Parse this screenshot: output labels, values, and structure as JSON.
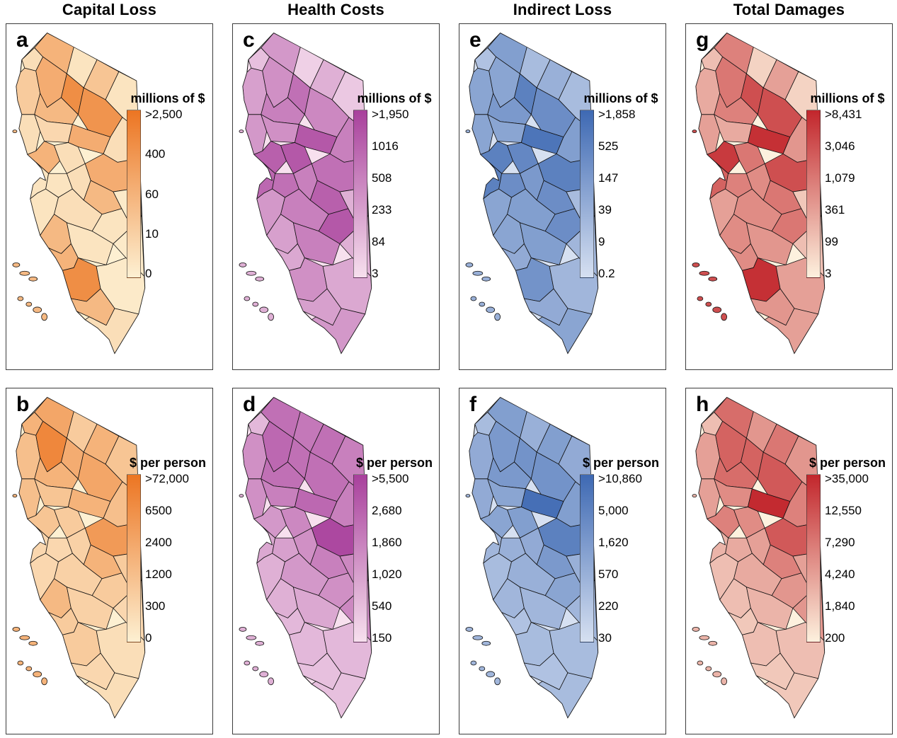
{
  "figure": {
    "columns": [
      {
        "title": "Capital Loss"
      },
      {
        "title": "Health Costs"
      },
      {
        "title": "Indirect Loss"
      },
      {
        "title": "Total Damages"
      }
    ]
  },
  "chart_data": {
    "type": "heatmap",
    "subtype": "choropleth-map-grid",
    "region": "California counties (state shown in rotated orientation, Channel Islands offshore)",
    "rows": [
      "millions of $",
      "$ per person"
    ],
    "note": "region_shades are relative color intensities (0 = lightest, 1 = darkest) estimated from the figure; legend color scales are nonlinear",
    "panels": [
      {
        "id": "a",
        "letter": "a",
        "column": "Capital Loss",
        "unit": "millions of $",
        "legend_labels": [
          ">2,500",
          "400",
          "60",
          "10",
          "0"
        ],
        "color_light": "#FDF0D2",
        "color_dark": "#EC7522",
        "region_shades": {
          "delnorte": 0.15,
          "siskiyou": 0.5,
          "modoc": 0.1,
          "lassen": 0.35,
          "tahoe_ne": 0.1,
          "humboldt": 0.3,
          "trinity": 0.55,
          "shasta": 0.8,
          "tehama": 0.45,
          "plumas": 0.75,
          "mendocino": 0.15,
          "glenn_colusa": 0.2,
          "butte": 0.55,
          "yuba_nevada": 0.15,
          "sonoma_napa": 0.5,
          "sac": 0.15,
          "eldorado": 0.55,
          "sf_bay": 0.1,
          "contra_delta": 0.1,
          "stanislaus": 0.15,
          "sierra_central": 0.45,
          "mono_east": 0.05,
          "santacruz_monterey": 0.1,
          "merced_fresno_w": 0.15,
          "fresno_e": 0.1,
          "inyo": 0.05,
          "slo": 0.45,
          "kern": 0.1,
          "santabarbara": 0.5,
          "ventura_la": 0.8,
          "mojave": 0.05,
          "orange_riverside": 0.45,
          "sandiego_imperial": 0.15,
          "islands": 0.45
        }
      },
      {
        "id": "b",
        "letter": "b",
        "column": "Capital Loss",
        "unit": "$ per person",
        "legend_labels": [
          ">72,000",
          "6500",
          "2400",
          "1200",
          "300",
          "0"
        ],
        "color_light": "#FDF0D2",
        "color_dark": "#EC7522",
        "region_shades": {
          "delnorte": 0.5,
          "siskiyou": 0.6,
          "modoc": 0.3,
          "lassen": 0.5,
          "tahoe_ne": 0.35,
          "humboldt": 0.4,
          "trinity": 0.85,
          "shasta": 0.55,
          "tehama": 0.5,
          "plumas": 0.6,
          "mendocino": 0.4,
          "glenn_colusa": 0.35,
          "butte": 0.5,
          "yuba_nevada": 0.4,
          "sonoma_napa": 0.35,
          "sac": 0.3,
          "eldorado": 0.7,
          "sf_bay": 0.2,
          "contra_delta": 0.2,
          "stanislaus": 0.25,
          "sierra_central": 0.5,
          "mono_east": 0.3,
          "santacruz_monterey": 0.2,
          "merced_fresno_w": 0.25,
          "fresno_e": 0.3,
          "inyo": 0.2,
          "slo": 0.45,
          "kern": 0.25,
          "santabarbara": 0.3,
          "ventura_la": 0.3,
          "mojave": 0.15,
          "orange_riverside": 0.2,
          "sandiego_imperial": 0.15,
          "islands": 0.5
        }
      },
      {
        "id": "c",
        "letter": "c",
        "column": "Health Costs",
        "unit": "millions of $",
        "legend_labels": [
          ">1,950",
          "1016",
          "508",
          "233",
          "84",
          "3"
        ],
        "color_light": "#F7E0EE",
        "color_dark": "#A8409C",
        "region_shades": {
          "delnorte": 0.2,
          "siskiyou": 0.45,
          "modoc": 0.1,
          "lassen": 0.3,
          "tahoe_ne": 0.15,
          "humboldt": 0.4,
          "trinity": 0.5,
          "shasta": 0.7,
          "tehama": 0.6,
          "plumas": 0.55,
          "mendocino": 0.45,
          "glenn_colusa": 0.5,
          "butte": 0.85,
          "yuba_nevada": 0.6,
          "sonoma_napa": 0.8,
          "sac": 0.85,
          "eldorado": 0.7,
          "sf_bay": 0.75,
          "contra_delta": 0.7,
          "stanislaus": 0.6,
          "sierra_central": 0.8,
          "mono_east": 0.3,
          "santacruz_monterey": 0.45,
          "merced_fresno_w": 0.6,
          "fresno_e": 0.85,
          "inyo": 0.3,
          "slo": 0.4,
          "kern": 0.6,
          "santabarbara": 0.35,
          "ventura_la": 0.5,
          "mojave": 0.35,
          "orange_riverside": 0.4,
          "sandiego_imperial": 0.45,
          "islands": 0.3
        }
      },
      {
        "id": "d",
        "letter": "d",
        "column": "Health Costs",
        "unit": "$ per person",
        "legend_labels": [
          ">5,500",
          "2,680",
          "1,860",
          "1,020",
          "540",
          "150"
        ],
        "color_light": "#F7E0EE",
        "color_dark": "#A8409C",
        "region_shades": {
          "delnorte": 0.25,
          "siskiyou": 0.7,
          "modoc": 0.65,
          "lassen": 0.7,
          "tahoe_ne": 0.6,
          "humboldt": 0.5,
          "trinity": 0.75,
          "shasta": 0.7,
          "tehama": 0.7,
          "plumas": 0.7,
          "mendocino": 0.5,
          "glenn_colusa": 0.6,
          "butte": 0.75,
          "yuba_nevada": 0.6,
          "sonoma_napa": 0.45,
          "sac": 0.55,
          "eldorado": 0.95,
          "sf_bay": 0.35,
          "contra_delta": 0.4,
          "stanislaus": 0.5,
          "sierra_central": 0.6,
          "mono_east": 0.55,
          "santacruz_monterey": 0.3,
          "merced_fresno_w": 0.45,
          "fresno_e": 0.5,
          "inyo": 0.55,
          "slo": 0.3,
          "kern": 0.35,
          "santabarbara": 0.25,
          "ventura_la": 0.25,
          "mojave": 0.25,
          "orange_riverside": 0.2,
          "sandiego_imperial": 0.2,
          "islands": 0.3
        }
      },
      {
        "id": "e",
        "letter": "e",
        "column": "Indirect Loss",
        "unit": "millions of $",
        "legend_labels": [
          ">1,858",
          "525",
          "147",
          "39",
          "9",
          "0.2"
        ],
        "color_light": "#D6E0F1",
        "color_dark": "#3E69B3",
        "region_shades": {
          "delnorte": 0.25,
          "siskiyou": 0.55,
          "modoc": 0.3,
          "lassen": 0.4,
          "tahoe_ne": 0.3,
          "humboldt": 0.5,
          "trinity": 0.5,
          "shasta": 0.8,
          "tehama": 0.6,
          "plumas": 0.7,
          "mendocino": 0.5,
          "glenn_colusa": 0.5,
          "butte": 0.9,
          "yuba_nevada": 0.55,
          "sonoma_napa": 0.8,
          "sac": 0.75,
          "eldorado": 0.8,
          "sf_bay": 0.8,
          "contra_delta": 0.7,
          "stanislaus": 0.6,
          "sierra_central": 0.7,
          "mono_east": 0.3,
          "santacruz_monterey": 0.5,
          "merced_fresno_w": 0.55,
          "fresno_e": 0.7,
          "inyo": 0.35,
          "slo": 0.5,
          "kern": 0.55,
          "santabarbara": 0.45,
          "ventura_la": 0.65,
          "mojave": 0.35,
          "orange_riverside": 0.45,
          "sandiego_imperial": 0.5,
          "islands": 0.4
        }
      },
      {
        "id": "f",
        "letter": "f",
        "column": "Indirect Loss",
        "unit": "$ per person",
        "legend_labels": [
          ">10,860",
          "5,000",
          "1,620",
          "570",
          "220",
          "30"
        ],
        "color_light": "#D6E0F1",
        "color_dark": "#3E69B3",
        "region_shades": {
          "delnorte": 0.3,
          "siskiyou": 0.55,
          "modoc": 0.4,
          "lassen": 0.55,
          "tahoe_ne": 0.45,
          "humboldt": 0.45,
          "trinity": 0.6,
          "shasta": 0.65,
          "tehama": 0.6,
          "plumas": 0.65,
          "mendocino": 0.45,
          "glenn_colusa": 0.5,
          "butte": 0.95,
          "yuba_nevada": 0.55,
          "sonoma_napa": 0.5,
          "sac": 0.55,
          "eldorado": 0.8,
          "sf_bay": 0.35,
          "contra_delta": 0.4,
          "stanislaus": 0.45,
          "sierra_central": 0.6,
          "mono_east": 0.4,
          "santacruz_monterey": 0.3,
          "merced_fresno_w": 0.4,
          "fresno_e": 0.5,
          "inyo": 0.35,
          "slo": 0.35,
          "kern": 0.35,
          "santabarbara": 0.25,
          "ventura_la": 0.3,
          "mojave": 0.3,
          "orange_riverside": 0.25,
          "sandiego_imperial": 0.3,
          "islands": 0.35
        }
      },
      {
        "id": "g",
        "letter": "g",
        "column": "Total Damages",
        "unit": "millions of $",
        "legend_labels": [
          ">8,431",
          "3,046",
          "1,079",
          "361",
          "99",
          "3"
        ],
        "color_light": "#FDF1DE",
        "color_dark": "#C2262C",
        "region_shades": {
          "delnorte": 0.25,
          "siskiyou": 0.55,
          "modoc": 0.15,
          "lassen": 0.4,
          "tahoe_ne": 0.15,
          "humboldt": 0.35,
          "trinity": 0.6,
          "shasta": 0.8,
          "tehama": 0.55,
          "plumas": 0.8,
          "mendocino": 0.4,
          "glenn_colusa": 0.35,
          "butte": 0.95,
          "yuba_nevada": 0.45,
          "sonoma_napa": 0.9,
          "sac": 0.6,
          "eldorado": 0.8,
          "sf_bay": 0.7,
          "contra_delta": 0.55,
          "stanislaus": 0.5,
          "sierra_central": 0.6,
          "mono_east": 0.2,
          "santacruz_monterey": 0.4,
          "merced_fresno_w": 0.5,
          "fresno_e": 0.6,
          "inyo": 0.25,
          "slo": 0.5,
          "kern": 0.45,
          "santabarbara": 0.5,
          "ventura_la": 0.95,
          "mojave": 0.4,
          "orange_riverside": 0.45,
          "sandiego_imperial": 0.4,
          "islands": 0.8
        }
      },
      {
        "id": "h",
        "letter": "h",
        "column": "Total Damages",
        "unit": "$ per person",
        "legend_labels": [
          ">35,000",
          "12,550",
          "7,290",
          "4,240",
          "1,840",
          "200"
        ],
        "color_light": "#FDF1DE",
        "color_dark": "#C2262C",
        "region_shades": {
          "delnorte": 0.25,
          "siskiyou": 0.65,
          "modoc": 0.45,
          "lassen": 0.6,
          "tahoe_ne": 0.45,
          "humboldt": 0.4,
          "trinity": 0.7,
          "shasta": 0.7,
          "tehama": 0.65,
          "plumas": 0.75,
          "mendocino": 0.4,
          "glenn_colusa": 0.5,
          "butte": 0.98,
          "yuba_nevada": 0.55,
          "sonoma_napa": 0.55,
          "sac": 0.5,
          "eldorado": 0.75,
          "sf_bay": 0.3,
          "contra_delta": 0.35,
          "stanislaus": 0.4,
          "sierra_central": 0.55,
          "mono_east": 0.4,
          "santacruz_monterey": 0.25,
          "merced_fresno_w": 0.35,
          "fresno_e": 0.45,
          "inyo": 0.45,
          "slo": 0.25,
          "kern": 0.3,
          "santabarbara": 0.2,
          "ventura_la": 0.25,
          "mojave": 0.25,
          "orange_riverside": 0.2,
          "sandiego_imperial": 0.2,
          "islands": 0.3
        }
      }
    ]
  }
}
